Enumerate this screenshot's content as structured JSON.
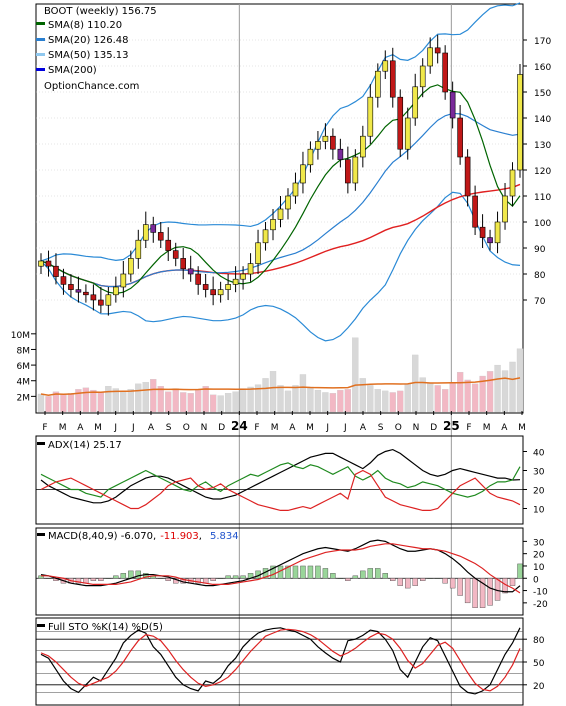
{
  "colors": {
    "sma8": "#006400",
    "sma20": "#2a7fd0",
    "sma50": "#e02020",
    "sma200": "#0000dd",
    "bb": "#2a8ad6",
    "candle_up": "#f0e84a",
    "candle_down": "#c01818",
    "candle_alt": "#7a2a9a",
    "volume_up": "#d8d8d8",
    "volume_down": "#f2b8c4",
    "volume_avg": "#e07020",
    "adx_plus": "#1f8a1f",
    "adx_minus": "#dd2222",
    "adx_line": "#000000",
    "macd_line": "#000000",
    "macd_signal": "#dd2222",
    "hist_pos": "#9ad59a",
    "hist_neg": "#f2b8c4",
    "sto_k": "#000000",
    "sto_d": "#dd2222",
    "macd_val1": "#dd0000",
    "macd_val2": "#2255cc"
  },
  "legend": {
    "title": "BOOT (weekly) 156.75",
    "sma8": "SMA(8) 110.20",
    "sma20": "SMA(20) 126.48",
    "sma50": "SMA(50) 135.13",
    "sma200": "SMA(200)",
    "brand": "OptionChance.com"
  },
  "adx_label": "ADX(14) 25.17",
  "macd_label": {
    "prefix": "MACD(8,40,9) -6.070,",
    "v1": "-11.903",
    "sep": ",",
    "v2": "5.834"
  },
  "sto_label": "Full STO %K(14) %D(5)",
  "chart_data": [
    {
      "type": "candlestick",
      "title": "BOOT (weekly) 156.75",
      "x_tick_labels": [
        "F",
        "M",
        "A",
        "M",
        "J",
        "J",
        "A",
        "S",
        "O",
        "N",
        "D",
        "24",
        "F",
        "M",
        "A",
        "M",
        "J",
        "J",
        "A",
        "S",
        "O",
        "N",
        "D",
        "25",
        "F",
        "M",
        "A",
        "M"
      ],
      "y_tick_labels": [
        "70",
        "80",
        "90",
        "100",
        "110",
        "120",
        "130",
        "140",
        "150",
        "160",
        "170"
      ],
      "ylim": [
        65,
        180
      ],
      "volume_tick_labels": [
        "2M",
        "4M",
        "6M",
        "8M",
        "10M"
      ],
      "volume_ylim": [
        0,
        11
      ],
      "series_names": [
        "SMA(8) 110.20",
        "SMA(20) 126.48",
        "SMA(50) 135.13",
        "SMA(200)"
      ],
      "close": [
        85,
        83,
        79,
        76,
        74,
        73,
        72,
        70,
        68,
        72,
        75,
        80,
        86,
        93,
        99,
        96,
        93,
        89,
        86,
        82,
        80,
        76,
        74,
        72,
        74,
        76,
        78,
        80,
        84,
        92,
        97,
        101,
        105,
        110,
        115,
        122,
        128,
        131,
        133,
        128,
        124,
        115,
        125,
        133,
        148,
        158,
        162,
        148,
        128,
        140,
        152,
        160,
        167,
        165,
        150,
        140,
        125,
        110,
        98,
        94,
        92,
        100,
        110,
        120,
        156.75
      ],
      "sma8_last": 110.2,
      "sma20_last": 126.48,
      "sma50_last": 135.13,
      "volume_millions": [
        2.3,
        2.0,
        2.6,
        2.2,
        2.4,
        2.9,
        3.1,
        2.8,
        2.5,
        3.3,
        3.0,
        2.7,
        2.9,
        3.6,
        3.8,
        4.2,
        3.3,
        2.6,
        3.0,
        2.5,
        2.4,
        2.8,
        3.3,
        2.2,
        2.1,
        2.4,
        2.6,
        3.0,
        3.2,
        3.5,
        4.3,
        5.2,
        3.4,
        2.7,
        3.4,
        4.8,
        3.2,
        2.8,
        2.5,
        2.4,
        2.8,
        2.9,
        9.5,
        4.3,
        3.4,
        2.9,
        2.7,
        2.5,
        2.7,
        3.6,
        7.3,
        4.4,
        3.7,
        3.4,
        2.9,
        3.7,
        5.1,
        4.1,
        3.6,
        4.6,
        5.2,
        6.0,
        5.3,
        6.4,
        8.1
      ]
    },
    {
      "type": "line",
      "title": "ADX(14) 25.17",
      "y_tick_labels": [
        "10",
        "20",
        "30",
        "40"
      ],
      "ylim": [
        5,
        45
      ],
      "series": [
        {
          "name": "ADX",
          "values": [
            25,
            22,
            20,
            18,
            16,
            15,
            14,
            13,
            13,
            14,
            16,
            19,
            22,
            24,
            26,
            27,
            27,
            26,
            24,
            22,
            20,
            18,
            16,
            15,
            15,
            16,
            17,
            19,
            21,
            23,
            25,
            27,
            29,
            31,
            33,
            35,
            37,
            38,
            39,
            39,
            37,
            35,
            33,
            31,
            34,
            38,
            40,
            41,
            39,
            36,
            33,
            30,
            28,
            27,
            28,
            30,
            31,
            30,
            29,
            28,
            27,
            26,
            26,
            25,
            25.17
          ]
        },
        {
          "name": "+DI",
          "values": [
            28,
            26,
            24,
            22,
            20,
            20,
            18,
            17,
            16,
            20,
            22,
            24,
            26,
            28,
            30,
            28,
            26,
            24,
            22,
            20,
            19,
            22,
            24,
            21,
            19,
            22,
            24,
            26,
            28,
            27,
            29,
            31,
            33,
            34,
            32,
            31,
            33,
            32,
            30,
            28,
            30,
            32,
            27,
            25,
            27,
            30,
            26,
            24,
            23,
            21,
            22,
            24,
            23,
            22,
            20,
            18,
            17,
            16,
            17,
            19,
            22,
            24,
            24,
            25,
            32
          ]
        },
        {
          "name": "-DI",
          "values": [
            20,
            22,
            24,
            25,
            26,
            24,
            22,
            20,
            18,
            16,
            14,
            12,
            10,
            10,
            12,
            15,
            18,
            22,
            24,
            25,
            26,
            22,
            20,
            21,
            23,
            20,
            18,
            16,
            14,
            12,
            11,
            10,
            9,
            9,
            10,
            11,
            10,
            12,
            14,
            16,
            18,
            15,
            28,
            30,
            28,
            22,
            16,
            14,
            12,
            11,
            10,
            9,
            9,
            10,
            14,
            18,
            22,
            24,
            26,
            22,
            18,
            16,
            15,
            14,
            12
          ]
        }
      ]
    },
    {
      "type": "line",
      "title": "MACD(8,40,9) -6.070, -11.903, 5.834",
      "y_tick_labels": [
        "-20",
        "-10",
        "0",
        "10",
        "20",
        "30"
      ],
      "ylim": [
        -25,
        36
      ],
      "series": [
        {
          "name": "MACD",
          "values": [
            3,
            2,
            0,
            -2,
            -4,
            -5,
            -6,
            -6,
            -6,
            -5,
            -4,
            -2,
            0,
            2,
            3,
            3,
            2,
            1,
            -1,
            -3,
            -4,
            -5,
            -6,
            -6,
            -5,
            -4,
            -3,
            -2,
            0,
            2,
            5,
            8,
            11,
            14,
            17,
            20,
            22,
            24,
            25,
            24,
            23,
            22,
            24,
            27,
            30,
            31,
            30,
            27,
            24,
            22,
            22,
            23,
            24,
            23,
            20,
            16,
            11,
            5,
            0,
            -4,
            -8,
            -10,
            -11,
            -11,
            -6.07
          ]
        },
        {
          "name": "Signal",
          "values": [
            2,
            2,
            1,
            0,
            -2,
            -3,
            -4,
            -5,
            -5,
            -5,
            -5,
            -4,
            -3,
            -1,
            1,
            2,
            2,
            2,
            1,
            -1,
            -2,
            -3,
            -4,
            -5,
            -5,
            -5,
            -4,
            -3,
            -2,
            -1,
            1,
            3,
            6,
            9,
            12,
            15,
            17,
            19,
            21,
            22,
            23,
            23,
            23,
            24,
            26,
            27,
            28,
            28,
            27,
            26,
            25,
            24,
            24,
            23,
            22,
            20,
            18,
            15,
            12,
            8,
            3,
            -1,
            -5,
            -8,
            -11.903
          ]
        }
      ]
    },
    {
      "type": "line",
      "title": "Full STO %K(14) %D(5)",
      "y_tick_labels": [
        "20",
        "50",
        "80"
      ],
      "ylim": [
        0,
        100
      ],
      "series": [
        {
          "name": "%K",
          "values": [
            60,
            55,
            40,
            25,
            15,
            10,
            20,
            30,
            25,
            40,
            55,
            75,
            85,
            92,
            88,
            70,
            60,
            45,
            30,
            20,
            15,
            12,
            25,
            22,
            30,
            45,
            55,
            70,
            80,
            88,
            92,
            94,
            95,
            92,
            90,
            85,
            80,
            70,
            62,
            55,
            50,
            78,
            80,
            85,
            92,
            90,
            80,
            65,
            40,
            30,
            50,
            70,
            82,
            78,
            58,
            38,
            18,
            10,
            8,
            12,
            20,
            40,
            60,
            75,
            95
          ]
        },
        {
          "name": "%D",
          "values": [
            62,
            58,
            50,
            40,
            30,
            22,
            18,
            22,
            26,
            30,
            38,
            50,
            65,
            78,
            86,
            84,
            78,
            66,
            52,
            40,
            30,
            22,
            18,
            20,
            24,
            30,
            40,
            52,
            64,
            74,
            84,
            88,
            92,
            93,
            92,
            90,
            86,
            80,
            72,
            64,
            58,
            62,
            68,
            76,
            83,
            88,
            86,
            80,
            68,
            52,
            42,
            48,
            60,
            72,
            76,
            68,
            52,
            36,
            22,
            14,
            12,
            18,
            30,
            46,
            68
          ]
        }
      ]
    }
  ]
}
